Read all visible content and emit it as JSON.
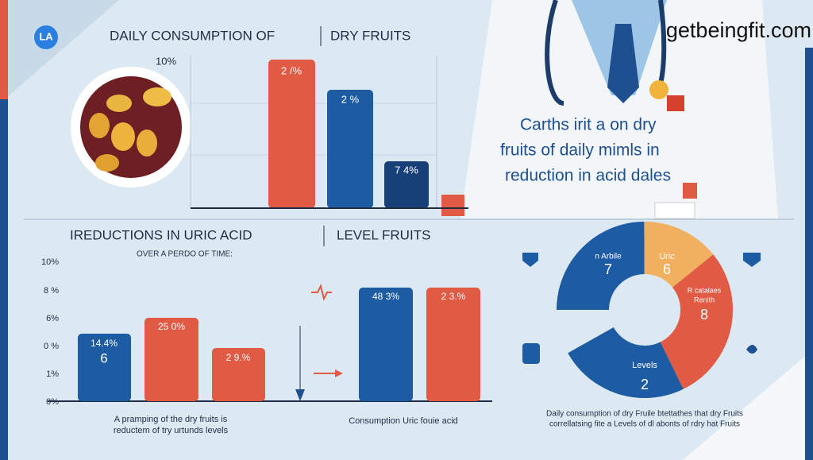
{
  "logo": "LA",
  "top_chart": {
    "title": "DAILY CONSUMPTION OF",
    "title_b": "DRY FRUITS",
    "axis_label": "10%",
    "bar_labels": [
      "2 /%",
      "2 %",
      "7 4%"
    ]
  },
  "watermark": "getbeingfit.com",
  "callout": [
    "Carths irit a on dry",
    "fruits of daily mimls in",
    "reduction in acid dales"
  ],
  "bottom_chart": {
    "title": "IREDUCTIONS IN URIC ACID",
    "title_b": "LEVEL FRUITS",
    "subtitle": "OVER A PERDO OF TIME:",
    "axis_labels": [
      "10%",
      "8 %",
      "6%",
      "0 %",
      "1%",
      "0%"
    ],
    "bar_labels": [
      "14.4%",
      "6",
      "25 0%",
      "2 9.%",
      "48 3%",
      "2 3.%"
    ],
    "caption_left": [
      "A pramping of the dry fruits is",
      "reductem of try urtunds levels"
    ],
    "caption_right": "Consumption Uric fouie acid"
  },
  "donut": {
    "labels": [
      "n Arbile",
      "7",
      "Uric",
      "6",
      "R catalaes",
      "Renith",
      "8",
      "Levels",
      "2"
    ],
    "caption": [
      "Daily consumption of dry Fruile btettathes that dry Fruits",
      "correllatsing fite a Levels of dl abonts of rdry hat Fruits"
    ]
  }
}
